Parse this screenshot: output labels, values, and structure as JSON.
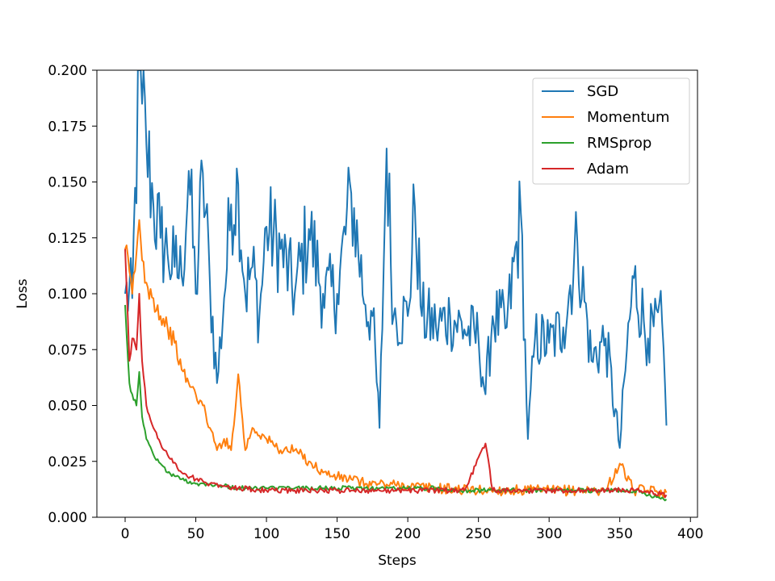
{
  "chart_data": {
    "type": "line",
    "title": "",
    "xlabel": "Steps",
    "ylabel": "Loss",
    "xlim": [
      -20,
      405
    ],
    "ylim": [
      0,
      0.2
    ],
    "xticks": [
      0,
      50,
      100,
      150,
      200,
      250,
      300,
      350,
      400
    ],
    "yticks": [
      0.0,
      0.025,
      0.05,
      0.075,
      0.1,
      0.125,
      0.15,
      0.175,
      0.2
    ],
    "xtick_labels": [
      "0",
      "50",
      "100",
      "150",
      "200",
      "250",
      "300",
      "350",
      "400"
    ],
    "ytick_labels": [
      "0.000",
      "0.025",
      "0.050",
      "0.075",
      "0.100",
      "0.125",
      "0.150",
      "0.175",
      "0.200"
    ],
    "grid": false,
    "legend_position": "top-right",
    "series": [
      {
        "name": "SGD",
        "color": "#1f77b4",
        "x": [
          0,
          5,
          10,
          12,
          15,
          20,
          25,
          30,
          35,
          40,
          45,
          50,
          55,
          60,
          65,
          70,
          75,
          80,
          85,
          90,
          95,
          100,
          110,
          120,
          130,
          140,
          150,
          160,
          170,
          175,
          180,
          185,
          190,
          200,
          205,
          210,
          220,
          230,
          240,
          250,
          255,
          260,
          270,
          280,
          285,
          290,
          300,
          310,
          320,
          330,
          340,
          350,
          355,
          360,
          370,
          380,
          383
        ],
        "values": [
          0.1,
          0.098,
          0.2,
          0.185,
          0.167,
          0.14,
          0.125,
          0.118,
          0.112,
          0.108,
          0.155,
          0.1,
          0.154,
          0.105,
          0.06,
          0.098,
          0.14,
          0.149,
          0.1,
          0.112,
          0.09,
          0.13,
          0.12,
          0.1,
          0.129,
          0.1,
          0.1,
          0.145,
          0.095,
          0.09,
          0.04,
          0.165,
          0.09,
          0.09,
          0.139,
          0.09,
          0.085,
          0.09,
          0.084,
          0.08,
          0.055,
          0.09,
          0.085,
          0.136,
          0.035,
          0.08,
          0.078,
          0.085,
          0.123,
          0.07,
          0.08,
          0.031,
          0.075,
          0.107,
          0.08,
          0.087,
          0.041
        ]
      },
      {
        "name": "Momentum",
        "color": "#ff7f0e",
        "x": [
          0,
          3,
          5,
          8,
          10,
          12,
          15,
          20,
          25,
          30,
          35,
          40,
          45,
          50,
          55,
          60,
          65,
          70,
          75,
          80,
          85,
          90,
          100,
          110,
          120,
          130,
          140,
          150,
          160,
          170,
          180,
          200,
          220,
          250,
          280,
          300,
          320,
          340,
          350,
          360,
          370,
          383
        ],
        "values": [
          0.12,
          0.11,
          0.1,
          0.118,
          0.133,
          0.115,
          0.105,
          0.098,
          0.09,
          0.085,
          0.078,
          0.066,
          0.06,
          0.055,
          0.05,
          0.04,
          0.03,
          0.035,
          0.03,
          0.064,
          0.03,
          0.04,
          0.035,
          0.03,
          0.03,
          0.025,
          0.02,
          0.018,
          0.017,
          0.015,
          0.015,
          0.014,
          0.013,
          0.012,
          0.012,
          0.012,
          0.012,
          0.012,
          0.024,
          0.012,
          0.012,
          0.011
        ]
      },
      {
        "name": "RMSprop",
        "color": "#2ca02c",
        "x": [
          0,
          3,
          5,
          8,
          10,
          12,
          15,
          20,
          25,
          30,
          40,
          50,
          60,
          70,
          80,
          100,
          120,
          140,
          160,
          180,
          200,
          220,
          240,
          260,
          280,
          300,
          320,
          340,
          360,
          383
        ],
        "values": [
          0.095,
          0.06,
          0.055,
          0.05,
          0.065,
          0.045,
          0.035,
          0.028,
          0.024,
          0.02,
          0.017,
          0.015,
          0.015,
          0.014,
          0.013,
          0.013,
          0.013,
          0.013,
          0.013,
          0.013,
          0.013,
          0.013,
          0.012,
          0.012,
          0.012,
          0.012,
          0.012,
          0.012,
          0.012,
          0.008
        ]
      },
      {
        "name": "Adam",
        "color": "#d62728",
        "x": [
          0,
          3,
          5,
          8,
          10,
          12,
          15,
          20,
          25,
          30,
          40,
          50,
          60,
          70,
          80,
          100,
          120,
          140,
          160,
          180,
          200,
          220,
          240,
          255,
          260,
          280,
          300,
          320,
          340,
          360,
          383
        ],
        "values": [
          0.12,
          0.07,
          0.08,
          0.075,
          0.1,
          0.07,
          0.05,
          0.04,
          0.033,
          0.028,
          0.02,
          0.017,
          0.015,
          0.014,
          0.013,
          0.012,
          0.012,
          0.012,
          0.012,
          0.012,
          0.012,
          0.012,
          0.012,
          0.033,
          0.012,
          0.012,
          0.012,
          0.012,
          0.012,
          0.012,
          0.01
        ]
      }
    ]
  }
}
